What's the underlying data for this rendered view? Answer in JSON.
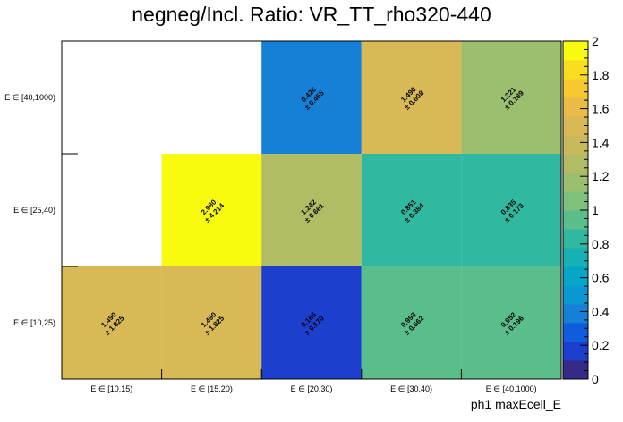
{
  "chart_data": {
    "type": "heatmap",
    "title": "negneg/Incl. Ratio: VR_TT_rho320-440",
    "xlabel": "ph1 maxEcell_E",
    "ylabel": "",
    "x_categories": [
      "E ∈ [10,15)",
      "E ∈ [15,20)",
      "E ∈ [20,30)",
      "E ∈ [30,40)",
      "E ∈ [40,1000)"
    ],
    "y_categories": [
      "E ∈ [10,25)",
      "E ∈ [25,40)",
      "E ∈ [40,1000)"
    ],
    "cells": [
      {
        "x": 0,
        "y": 0,
        "value": 1.49,
        "value_label": "1.490",
        "error_label": "± 1.825"
      },
      {
        "x": 1,
        "y": 0,
        "value": 1.49,
        "value_label": "1.490",
        "error_label": "± 1.825"
      },
      {
        "x": 2,
        "y": 0,
        "value": 0.166,
        "value_label": "0.166",
        "error_label": "± 0.170"
      },
      {
        "x": 3,
        "y": 0,
        "value": 0.993,
        "value_label": "0.993",
        "error_label": "± 0.662"
      },
      {
        "x": 4,
        "y": 0,
        "value": 0.952,
        "value_label": "0.952",
        "error_label": "± 0.196"
      },
      {
        "x": 1,
        "y": 1,
        "value": 2.98,
        "value_label": "2.980",
        "error_label": "± 4.214"
      },
      {
        "x": 2,
        "y": 1,
        "value": 1.242,
        "value_label": "1.242",
        "error_label": "± 0.661"
      },
      {
        "x": 3,
        "y": 1,
        "value": 0.851,
        "value_label": "0.851",
        "error_label": "± 0.384"
      },
      {
        "x": 4,
        "y": 1,
        "value": 0.835,
        "value_label": "0.835",
        "error_label": "± 0.173"
      },
      {
        "x": 2,
        "y": 2,
        "value": 0.426,
        "value_label": "0.426",
        "error_label": "± 0.455"
      },
      {
        "x": 3,
        "y": 2,
        "value": 1.49,
        "value_label": "1.490",
        "error_label": "± 0.608"
      },
      {
        "x": 4,
        "y": 2,
        "value": 1.221,
        "value_label": "1.221",
        "error_label": "± 0.189"
      }
    ],
    "zlim": [
      0,
      2
    ],
    "colorbar_ticks": [
      "0",
      "0.2",
      "0.4",
      "0.6",
      "0.8",
      "1",
      "1.2",
      "1.4",
      "1.6",
      "1.8",
      "2"
    ],
    "palette": [
      "#352a87",
      "#1c3fcd",
      "#0f5cdd",
      "#1481d6",
      "#0a98d3",
      "#06a7c6",
      "#17b0b4",
      "#31b8a0",
      "#59bd8c",
      "#7fc07a",
      "#9bbf6e",
      "#b2bc64",
      "#c7ba5a",
      "#d8b955",
      "#e9bb48",
      "#f7c930",
      "#f8de20",
      "#f9fb0e"
    ],
    "grid": false,
    "legend": "colorbar-right"
  }
}
